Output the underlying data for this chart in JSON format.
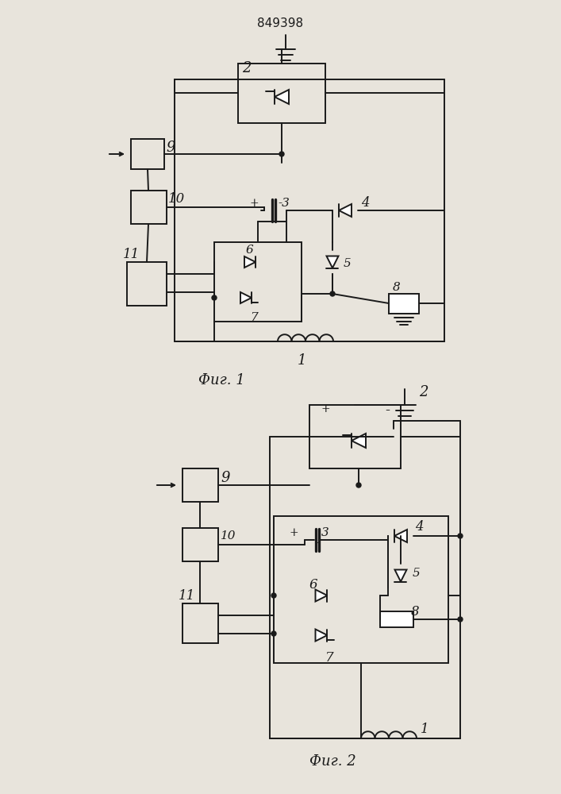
{
  "title": "849398",
  "fig1_label": "Фиг. 1",
  "fig2_label": "Фиг. 2",
  "bg_color": "#e8e4dc",
  "line_color": "#1a1a1a",
  "lw": 1.4
}
